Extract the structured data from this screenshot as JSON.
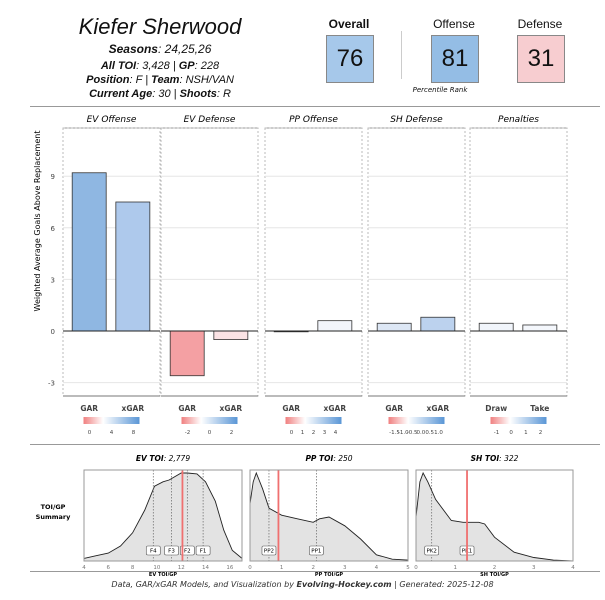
{
  "player": {
    "name": "Kiefer Sherwood",
    "seasons_label": "Seasons",
    "seasons": "24,25,26",
    "toi_label": "All TOI",
    "toi": "3,428",
    "gp_label": "GP",
    "gp": "228",
    "position_label": "Position",
    "position": "F",
    "team_label": "Team",
    "team": "NSH/VAN",
    "age_label": "Current Age",
    "age": "30",
    "shoots_label": "Shoots",
    "shoots": "R"
  },
  "ratings": {
    "overall_label": "Overall",
    "overall": "76",
    "offense_label": "Offense",
    "offense": "81",
    "defense_label": "Defense",
    "defense": "31",
    "percentile_label": "Percentile Rank",
    "colors": {
      "overall": "#a6c8ea",
      "offense": "#94bde5",
      "defense": "#f7cdd0"
    }
  },
  "chart_data": [
    {
      "type": "bar",
      "ylabel": "Weighted Average Goals Above Replacement",
      "ylim": [
        -3.8,
        12
      ],
      "yticks": [
        -3,
        0,
        3,
        6,
        9
      ],
      "grid": true,
      "panels": [
        {
          "title": "EV Offense",
          "categories": [
            "GAR",
            "xGAR"
          ],
          "values": [
            9.2,
            7.5
          ],
          "colors": [
            "#8fb7e2",
            "#aec9ec"
          ],
          "legend_ticks": [
            "0",
            "4",
            "8"
          ]
        },
        {
          "title": "EV Defense",
          "categories": [
            "GAR",
            "xGAR"
          ],
          "values": [
            -2.6,
            -0.5
          ],
          "colors": [
            "#f4a0a3",
            "#fbe3e5"
          ],
          "legend_ticks": [
            "-2",
            "0",
            "2"
          ]
        },
        {
          "title": "PP Offense",
          "categories": [
            "GAR",
            "xGAR"
          ],
          "values": [
            0.0,
            0.6
          ],
          "colors": [
            "#ffffff",
            "#f2f5fb"
          ],
          "legend_ticks": [
            "0",
            "1",
            "2",
            "3",
            "4"
          ]
        },
        {
          "title": "SH Defense",
          "categories": [
            "GAR",
            "xGAR"
          ],
          "values": [
            0.45,
            0.8
          ],
          "colors": [
            "#dde7f5",
            "#bcd2ee"
          ],
          "legend_ticks": [
            "-1.5",
            "-1.0",
            "-0.5",
            "0.0",
            "0.5",
            "1.0"
          ]
        },
        {
          "title": "Penalties",
          "categories": [
            "Draw",
            "Take"
          ],
          "values": [
            0.45,
            0.35
          ],
          "colors": [
            "#f1f5fb",
            "#f4f7fc"
          ],
          "legend_ticks": [
            "-1",
            "0",
            "1",
            "2"
          ]
        }
      ]
    },
    {
      "type": "area",
      "row_label": "TOI/GP Summary",
      "panels": [
        {
          "title_label": "EV TOI",
          "title_value": "2,779",
          "xlabel": "EV TOI/GP",
          "xlim": [
            4,
            17
          ],
          "xticks": [
            4,
            6,
            8,
            10,
            12,
            14,
            16
          ],
          "player": 12.1,
          "markers": [
            {
              "label": "F4",
              "x": 9.7
            },
            {
              "label": "F3",
              "x": 11.2
            },
            {
              "label": "F2",
              "x": 12.5
            },
            {
              "label": "F1",
              "x": 13.8
            }
          ],
          "density": [
            [
              4,
              0.03
            ],
            [
              5,
              0.06
            ],
            [
              6,
              0.09
            ],
            [
              7,
              0.17
            ],
            [
              8,
              0.32
            ],
            [
              9,
              0.58
            ],
            [
              9.8,
              0.85
            ],
            [
              10.5,
              0.9
            ],
            [
              11,
              0.92
            ],
            [
              12,
              1
            ],
            [
              12.5,
              1
            ],
            [
              13.3,
              0.99
            ],
            [
              14,
              0.9
            ],
            [
              14.8,
              0.68
            ],
            [
              15.5,
              0.35
            ],
            [
              16.2,
              0.12
            ],
            [
              17,
              0.03
            ]
          ]
        },
        {
          "title_label": "PP TOI",
          "title_value": "250",
          "xlabel": "PP TOI/GP",
          "xlim": [
            0,
            5
          ],
          "xticks": [
            0,
            1,
            2,
            3,
            4,
            5
          ],
          "player": 0.9,
          "markers": [
            {
              "label": "PP2",
              "x": 0.6
            },
            {
              "label": "PP1",
              "x": 2.1
            }
          ],
          "density": [
            [
              0,
              0.65
            ],
            [
              0.1,
              0.9
            ],
            [
              0.2,
              1
            ],
            [
              0.4,
              0.82
            ],
            [
              0.6,
              0.6
            ],
            [
              1,
              0.52
            ],
            [
              1.5,
              0.48
            ],
            [
              2,
              0.44
            ],
            [
              2.2,
              0.48
            ],
            [
              2.5,
              0.5
            ],
            [
              3,
              0.4
            ],
            [
              3.5,
              0.25
            ],
            [
              4,
              0.07
            ],
            [
              4.5,
              0.02
            ],
            [
              5,
              0.01
            ]
          ]
        },
        {
          "title_label": "SH TOI",
          "title_value": "322",
          "xlabel": "SH TOI/GP",
          "xlim": [
            0,
            4
          ],
          "xticks": [
            0,
            1,
            2,
            3,
            4
          ],
          "player": 1.3,
          "markers": [
            {
              "label": "PK2",
              "x": 0.4
            },
            {
              "label": "PK1",
              "x": 1.3
            }
          ],
          "density": [
            [
              0,
              0.5
            ],
            [
              0.1,
              0.9
            ],
            [
              0.18,
              1
            ],
            [
              0.3,
              0.9
            ],
            [
              0.5,
              0.7
            ],
            [
              0.9,
              0.46
            ],
            [
              1.2,
              0.44
            ],
            [
              1.6,
              0.44
            ],
            [
              1.75,
              0.42
            ],
            [
              2,
              0.27
            ],
            [
              2.5,
              0.1
            ],
            [
              3,
              0.04
            ],
            [
              3.5,
              0.01
            ],
            [
              4,
              0
            ]
          ]
        }
      ]
    }
  ],
  "footer": {
    "text_pre": "Data, GAR/xGAR Models, and Visualization by ",
    "site": "Evolving-Hockey.com",
    "text_post": " | Generated: 2025-12-08"
  }
}
